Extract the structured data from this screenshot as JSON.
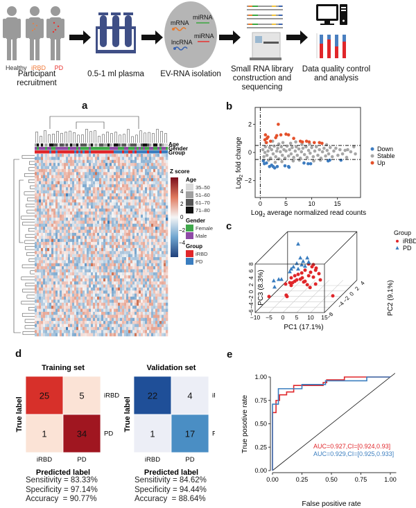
{
  "workflow": {
    "steps": [
      {
        "label": "Participant recruitment"
      },
      {
        "label": "0.5-1 ml plasma"
      },
      {
        "label": "EV-RNA isolation"
      },
      {
        "label": "Small RNA library construction and sequencing"
      },
      {
        "label": "Data quality control and analysis"
      }
    ],
    "people": [
      "Healthy",
      "iRBD",
      "PD"
    ],
    "rna": {
      "mrna": "mRNA",
      "mirna1": "miRNA",
      "lncrna": "lncRNA",
      "mirna2": "miRNA"
    },
    "colors": {
      "healthy": "#333333",
      "irbd": "#f07a3a",
      "pd": "#e8322e",
      "tube": "#3f4f86",
      "arrow": "#111111"
    }
  },
  "panels": {
    "a": "a",
    "b": "b",
    "c": "c",
    "d": "d",
    "e": "e"
  },
  "chart_data": [
    {
      "id": "a",
      "type": "heatmap",
      "annotations": [
        "Age",
        "Gender",
        "Group"
      ],
      "colorbar": {
        "title": "Z score",
        "ticks": [
          "4",
          "2",
          "0",
          "−2",
          "−4"
        ],
        "low": "#1f3f7a",
        "mid": "#f5f5f5",
        "high": "#7a0d1b"
      },
      "legend": {
        "age": {
          "title": "Age",
          "items": [
            {
              "label": "35–50",
              "color": "#d9d9d9"
            },
            {
              "label": "51–60",
              "color": "#a0a0a0"
            },
            {
              "label": "61–70",
              "color": "#555555"
            },
            {
              "label": "71–80",
              "color": "#111111"
            }
          ]
        },
        "gender": {
          "title": "Gender",
          "items": [
            {
              "label": "Female",
              "color": "#3fa84a"
            },
            {
              "label": "Male",
              "color": "#8e4aa6"
            }
          ]
        },
        "group": {
          "title": "Group",
          "items": [
            {
              "label": "iRBD",
              "color": "#e0262a"
            },
            {
              "label": "PD",
              "color": "#3a7dbf"
            }
          ]
        }
      }
    },
    {
      "id": "b",
      "type": "scatter",
      "xlabel": "Log2 average normalized read counts",
      "ylabel": "Log2 fold change",
      "xlim": [
        -1,
        19.5
      ],
      "ylim": [
        -3.2,
        3.2
      ],
      "xticks": [
        0,
        5,
        10,
        15
      ],
      "yticks": [
        -2,
        0,
        2
      ],
      "thresholds_y": [
        -0.5,
        0.5
      ],
      "threshold_x": 0,
      "legend_position": "right",
      "series": [
        {
          "name": "Down",
          "color": "#3d7cc0",
          "points": [
            [
              0.8,
              -0.8
            ],
            [
              1.2,
              -0.75
            ],
            [
              1.8,
              -1.0
            ],
            [
              2.5,
              -1.0
            ],
            [
              2.8,
              -1.1
            ],
            [
              3.3,
              -1.0
            ],
            [
              4.8,
              -0.95
            ],
            [
              5.5,
              -1.0
            ],
            [
              5.6,
              -1.05
            ],
            [
              8.5,
              -0.75
            ],
            [
              9.3,
              -0.8
            ],
            [
              9.8,
              -0.8
            ],
            [
              13.2,
              -0.6
            ],
            [
              13.5,
              -0.55
            ],
            [
              15.7,
              -0.55
            ],
            [
              0.6,
              -0.6
            ],
            [
              2.2,
              -0.9
            ]
          ]
        },
        {
          "name": "Stable",
          "color": "#a6a6a6",
          "points": [
            [
              0.5,
              0.2
            ],
            [
              0.7,
              -0.3
            ],
            [
              1,
              0.4
            ],
            [
              1.3,
              -0.2
            ],
            [
              1.5,
              0.1
            ],
            [
              1.8,
              0.35
            ],
            [
              2,
              -0.4
            ],
            [
              2.2,
              0.2
            ],
            [
              2.5,
              -0.1
            ],
            [
              2.7,
              0.45
            ],
            [
              3,
              -0.3
            ],
            [
              3.2,
              0.1
            ],
            [
              3.4,
              0.3
            ],
            [
              3.6,
              -0.45
            ],
            [
              3.9,
              0.05
            ],
            [
              4.1,
              0.4
            ],
            [
              4.3,
              -0.2
            ],
            [
              4.6,
              0.2
            ],
            [
              4.8,
              -0.4
            ],
            [
              5,
              0.1
            ],
            [
              5.2,
              0.45
            ],
            [
              5.5,
              -0.25
            ],
            [
              5.7,
              0.2
            ],
            [
              6,
              -0.1
            ],
            [
              6.2,
              0.35
            ],
            [
              6.5,
              -0.35
            ],
            [
              6.8,
              0.1
            ],
            [
              7,
              0.4
            ],
            [
              7.2,
              -0.2
            ],
            [
              7.5,
              0.25
            ],
            [
              7.8,
              -0.4
            ],
            [
              8,
              0.05
            ],
            [
              8.3,
              0.3
            ],
            [
              8.6,
              -0.15
            ],
            [
              8.9,
              0.4
            ],
            [
              9.1,
              -0.35
            ],
            [
              9.4,
              0.15
            ],
            [
              9.7,
              -0.05
            ],
            [
              10,
              0.35
            ],
            [
              10.3,
              -0.3
            ],
            [
              10.6,
              0.1
            ],
            [
              10.9,
              0.4
            ],
            [
              11.2,
              -0.2
            ],
            [
              11.5,
              0.2
            ],
            [
              11.8,
              -0.4
            ],
            [
              12.1,
              0.05
            ],
            [
              12.4,
              0.3
            ],
            [
              12.7,
              -0.25
            ],
            [
              13,
              0.15
            ],
            [
              13.3,
              -0.1
            ],
            [
              13.6,
              0.35
            ],
            [
              14,
              -0.3
            ],
            [
              14.3,
              0.1
            ],
            [
              14.7,
              0.3
            ],
            [
              15.1,
              -0.2
            ],
            [
              15.5,
              0.2
            ],
            [
              16,
              -0.1
            ],
            [
              16.5,
              0.15
            ],
            [
              17,
              0.2
            ],
            [
              18.5,
              -0.1
            ],
            [
              18.2,
              0.4
            ],
            [
              1.1,
              0.7
            ],
            [
              2.4,
              0.8
            ],
            [
              3.6,
              0.6
            ],
            [
              4.4,
              0.7
            ],
            [
              5.9,
              0.65
            ],
            [
              6.9,
              0.75
            ],
            [
              8.1,
              0.6
            ],
            [
              9.6,
              0.62
            ],
            [
              2.9,
              -0.7
            ],
            [
              4.2,
              -0.65
            ],
            [
              6.4,
              -0.6
            ],
            [
              7.6,
              -0.55
            ],
            [
              10.4,
              -0.6
            ],
            [
              11.7,
              -0.55
            ],
            [
              0.9,
              0.0
            ],
            [
              1.6,
              -0.55
            ],
            [
              12.9,
              0.55
            ],
            [
              16.8,
              -0.35
            ],
            [
              17.6,
              0.05
            ]
          ]
        },
        {
          "name": "Up",
          "color": "#e4512b",
          "points": [
            [
              0.9,
              0.9
            ],
            [
              1.0,
              1.25
            ],
            [
              1.3,
              1.0
            ],
            [
              1.5,
              1.1
            ],
            [
              2,
              0.8
            ],
            [
              3.2,
              1.2
            ],
            [
              3.5,
              2.0
            ],
            [
              4,
              1.25
            ],
            [
              5,
              1.3
            ],
            [
              5.5,
              1.25
            ],
            [
              6.5,
              1.0
            ],
            [
              7.8,
              0.8
            ],
            [
              8.2,
              0.75
            ],
            [
              9,
              0.8
            ],
            [
              9.5,
              0.75
            ],
            [
              10.5,
              0.7
            ],
            [
              11.5,
              0.7
            ],
            [
              12,
              0.65
            ],
            [
              3,
              1.05
            ],
            [
              1.2,
              0.7
            ]
          ]
        }
      ]
    },
    {
      "id": "c",
      "type": "scatter",
      "subtype": "3d",
      "xlabel": "PC1 (17.1%)",
      "ylabel": "PC2 (9.1%)",
      "zlabel": "PC3 (8.3%)",
      "xlim": [
        -10,
        15
      ],
      "ylim": [
        -8,
        4
      ],
      "zlim": [
        -6,
        8
      ],
      "xticks": [
        -10,
        -5,
        0,
        5,
        10,
        15
      ],
      "yticks": [
        -8,
        -6,
        -4,
        -2,
        0,
        2,
        4
      ],
      "zticks": [
        -6,
        -4,
        -2,
        0,
        2,
        4,
        6,
        8
      ],
      "legend_title": "Group",
      "legend_position": "top-right",
      "series": [
        {
          "name": "iRBD",
          "marker": "circle",
          "color": "#e0262a",
          "points": [
            [
              -8.9,
              -4,
              -4.5
            ],
            [
              -2.7,
              -4,
              -4.1
            ],
            [
              -2.4,
              -4,
              -4.5
            ],
            [
              -2.9,
              -4,
              -0.9
            ],
            [
              -1.4,
              -4,
              -0.5
            ],
            [
              -0.4,
              -4,
              -0.5
            ],
            [
              0.4,
              -4,
              -0.1
            ],
            [
              1.1,
              -4,
              0.3
            ],
            [
              2.4,
              -4,
              0.5
            ],
            [
              3.1,
              -4,
              0.9
            ],
            [
              4.1,
              -4,
              -0.1
            ],
            [
              4.9,
              -4,
              -1.1
            ],
            [
              5.9,
              -4,
              -1.9
            ],
            [
              7.9,
              -4,
              -0.9
            ],
            [
              9.6,
              -4,
              0.3
            ],
            [
              7.1,
              -4,
              1.1
            ],
            [
              5.4,
              -4,
              1.5
            ],
            [
              6.1,
              -4,
              2.5
            ],
            [
              7.9,
              -4,
              3.1
            ],
            [
              6.6,
              -4,
              4.1
            ],
            [
              4.1,
              -4,
              3.1
            ],
            [
              2.9,
              -4,
              2.3
            ],
            [
              1.6,
              -4,
              1.9
            ],
            [
              0.4,
              -4,
              1.5
            ],
            [
              -0.9,
              -4,
              0.9
            ],
            [
              5.4,
              -4,
              4.9
            ],
            [
              7.1,
              -4,
              4.7
            ],
            [
              8.1,
              -4,
              3.7
            ],
            [
              9.1,
              -4,
              2.1
            ],
            [
              3.6,
              -4,
              -0.3
            ],
            [
              -0.9,
              -4,
              -1.3
            ],
            [
              14.1,
              -4,
              -4.3
            ]
          ]
        },
        {
          "name": "PD",
          "marker": "triangle",
          "color": "#3a7dbf",
          "points": [
            [
              1.6,
              -4,
              10.7
            ],
            [
              2.4,
              -4,
              6.7
            ],
            [
              4.9,
              -4,
              6.7
            ],
            [
              3.4,
              -4,
              5.7
            ],
            [
              1.1,
              -4,
              5.1
            ],
            [
              -0.1,
              -4,
              4.1
            ],
            [
              -0.9,
              -4,
              3.5
            ],
            [
              4.1,
              -4,
              4.3
            ],
            [
              5.4,
              -4,
              5.5
            ],
            [
              -7.2,
              -4,
              0.1
            ],
            [
              -5.4,
              -4,
              0.5
            ],
            [
              -4.4,
              -4,
              0.5
            ],
            [
              -6.9,
              -4,
              -1.7
            ],
            [
              -1.4,
              -4,
              2.7
            ],
            [
              1.6,
              -4,
              3.5
            ],
            [
              2.9,
              -4,
              4.7
            ]
          ]
        }
      ]
    },
    {
      "id": "d1",
      "type": "heatmap",
      "title": "Training set",
      "xlabel": "Predicted label",
      "ylabel": "True label",
      "categories": [
        "iRBD",
        "PD"
      ],
      "values": [
        [
          25,
          5
        ],
        [
          1,
          34
        ]
      ],
      "colors": [
        [
          "#d7302a",
          "#fbe3d6"
        ],
        [
          "#fbe3d6",
          "#a01620"
        ]
      ],
      "stats": [
        "Sensitivity = 83.33%",
        "Specificity = 97.14%",
        "Accuracy  = 90.77%"
      ]
    },
    {
      "id": "d2",
      "type": "heatmap",
      "title": "Validation set",
      "xlabel": "Predicted label",
      "ylabel": "True label",
      "categories": [
        "iRBD",
        "PD"
      ],
      "values": [
        [
          22,
          4
        ],
        [
          1,
          17
        ]
      ],
      "colors": [
        [
          "#1f4f98",
          "#eceef6"
        ],
        [
          "#eceef6",
          "#4a8ec4"
        ]
      ],
      "stats": [
        "Sensitivity = 84.62%",
        "Specificity = 94.44%",
        "Accuracy  = 88.64%"
      ]
    },
    {
      "id": "e",
      "type": "line",
      "xlabel": "False positive rate",
      "ylabel": "True posotive rate",
      "xlim": [
        0,
        1
      ],
      "ylim": [
        0,
        1
      ],
      "ticks": [
        "0.00",
        "0.25",
        "0.50",
        "0.75",
        "1.00"
      ],
      "legend_position": "bottom-right",
      "series": [
        {
          "name": "AUC=0.927,CI=[0.924,0.93]",
          "color": "#e0262a",
          "points": [
            [
              0,
              0
            ],
            [
              0,
              0.62
            ],
            [
              0.03,
              0.62
            ],
            [
              0.03,
              0.75
            ],
            [
              0.06,
              0.75
            ],
            [
              0.06,
              0.81
            ],
            [
              0.12,
              0.81
            ],
            [
              0.12,
              0.84
            ],
            [
              0.18,
              0.84
            ],
            [
              0.18,
              0.91
            ],
            [
              0.43,
              0.91
            ],
            [
              0.43,
              0.94
            ],
            [
              0.46,
              0.94
            ],
            [
              0.46,
              0.97
            ],
            [
              0.61,
              0.97
            ],
            [
              0.61,
              1
            ],
            [
              1,
              1
            ]
          ]
        },
        {
          "name": "AUC=0.929,CI=[0.925,0.933]",
          "color": "#3a7dbf",
          "points": [
            [
              0,
              0
            ],
            [
              0,
              0.71
            ],
            [
              0.05,
              0.71
            ],
            [
              0.05,
              0.875
            ],
            [
              0.25,
              0.875
            ],
            [
              0.25,
              0.92
            ],
            [
              0.45,
              0.92
            ],
            [
              0.45,
              0.96
            ],
            [
              0.8,
              0.96
            ],
            [
              0.8,
              1
            ],
            [
              1,
              1
            ]
          ]
        }
      ]
    }
  ]
}
